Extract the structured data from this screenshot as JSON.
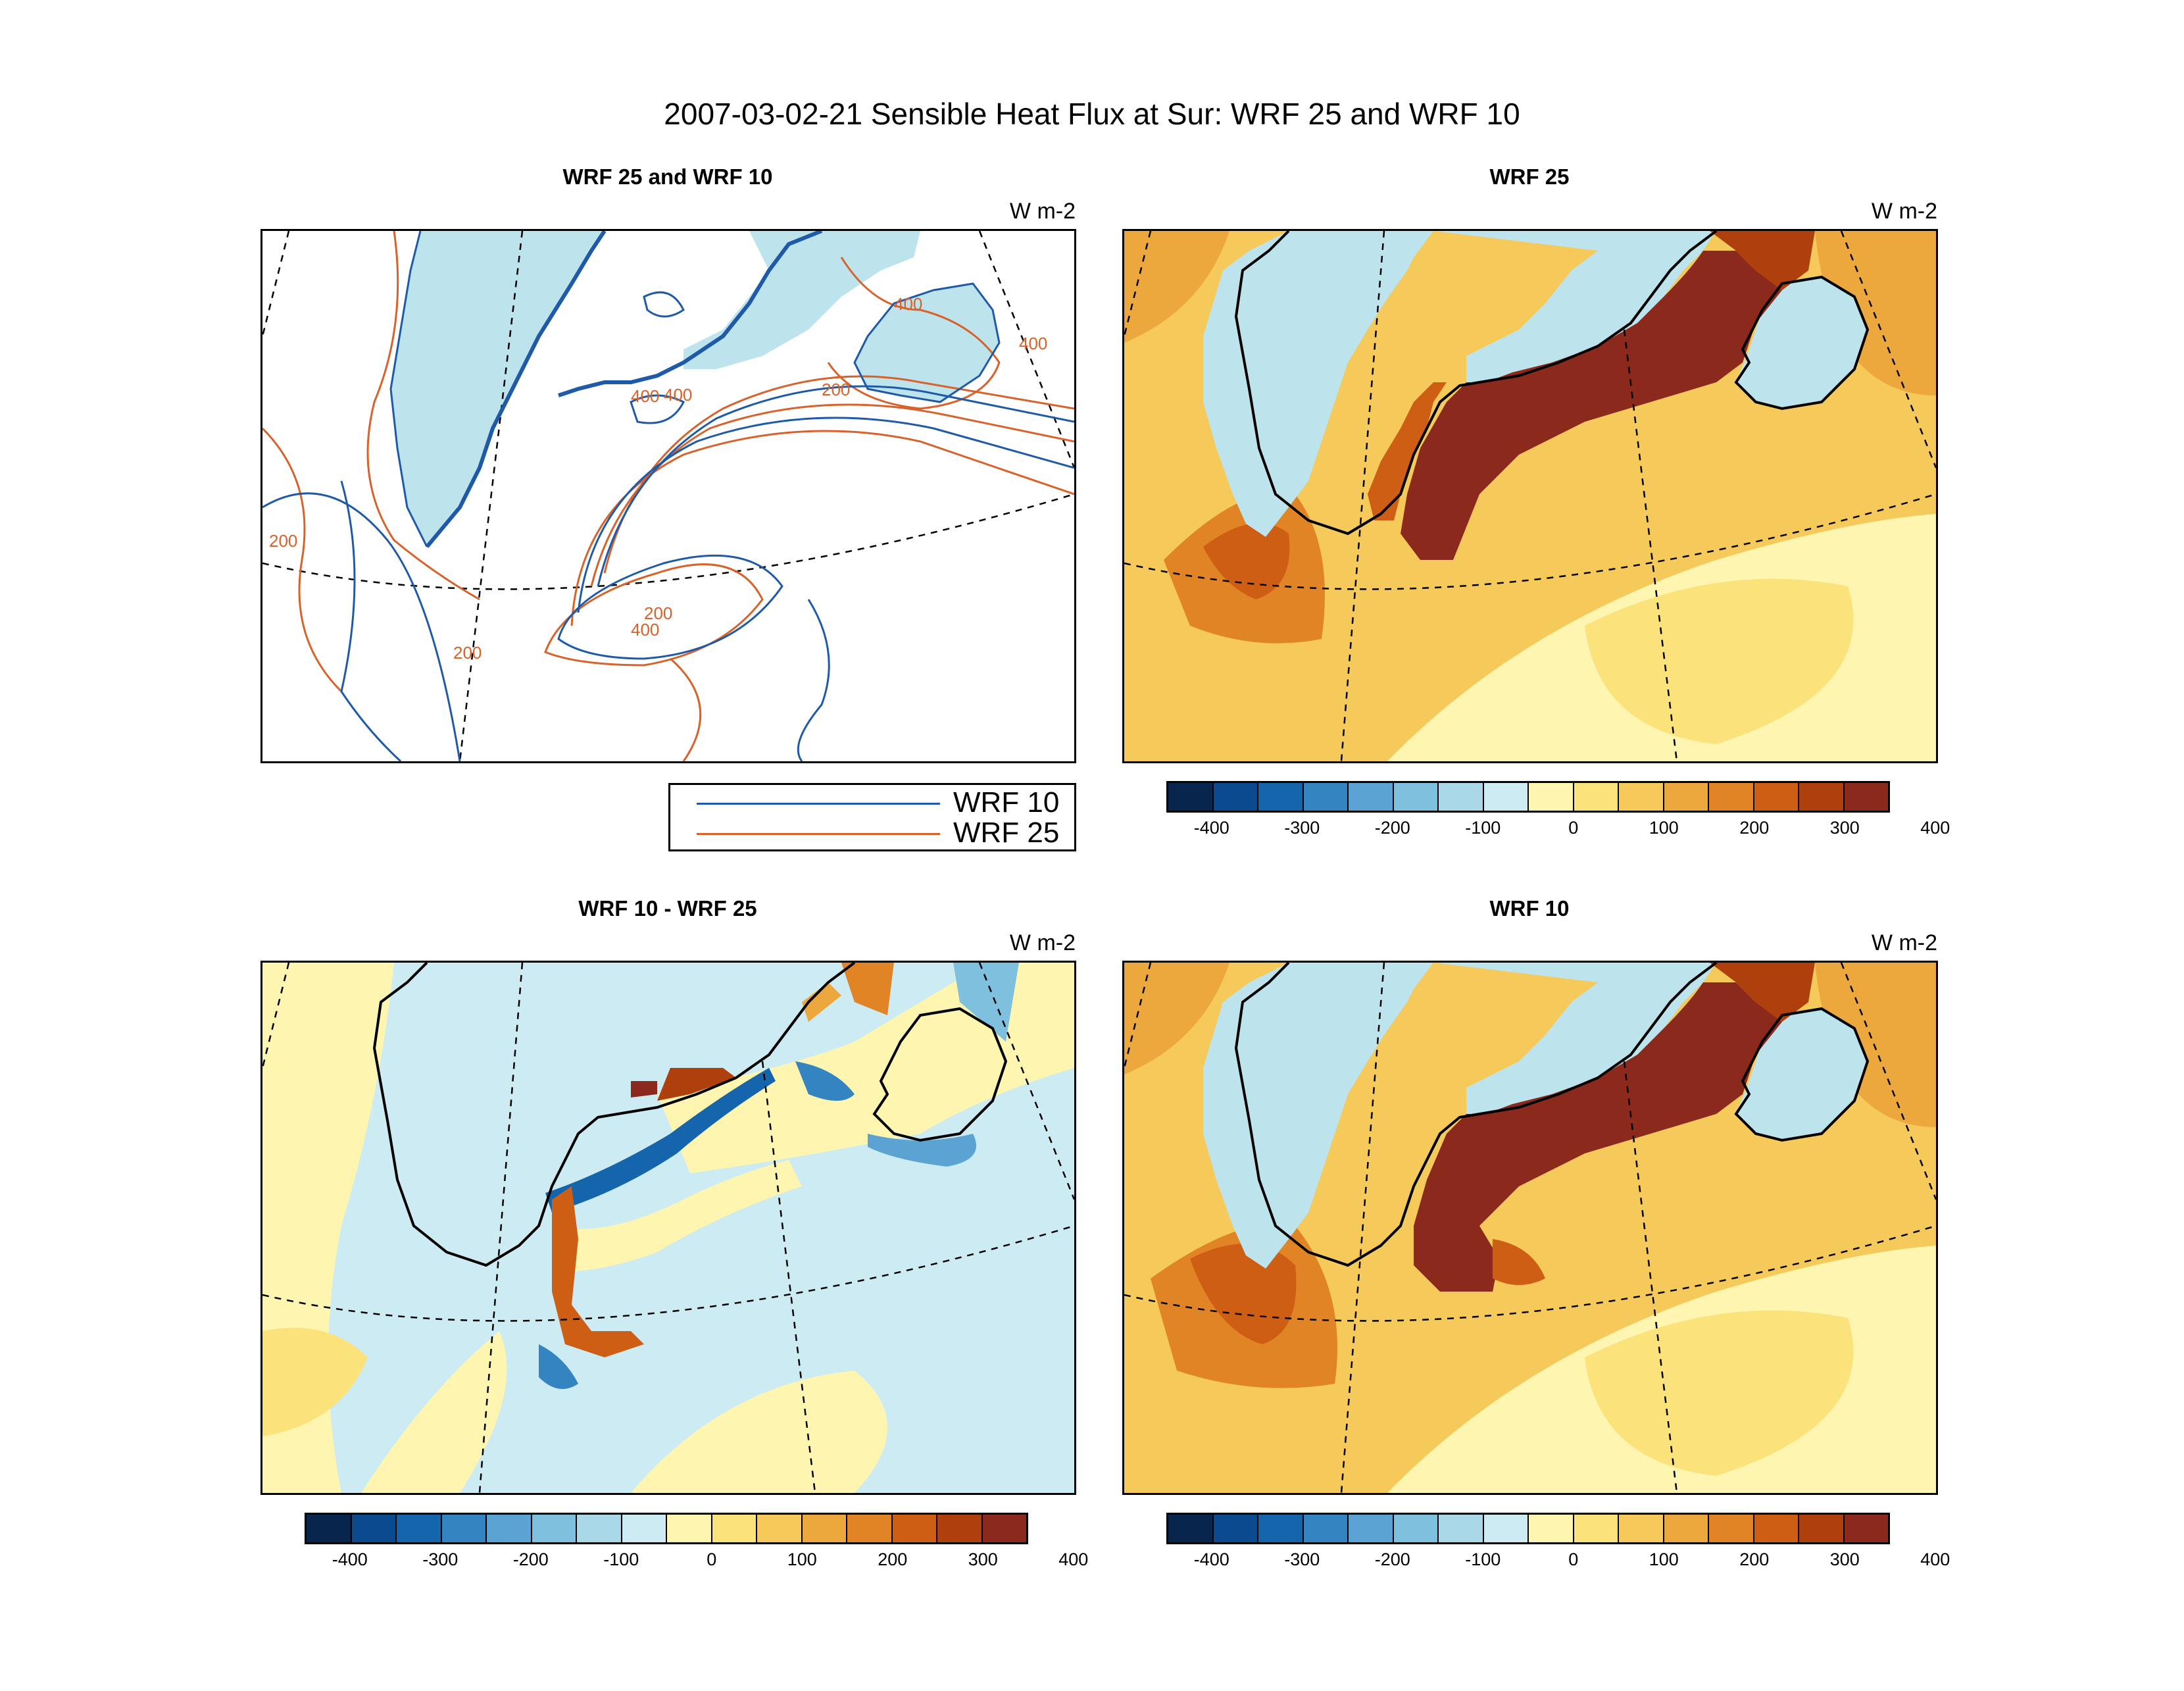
{
  "main_title": "2007-03-02-21 Sensible Heat Flux at Sur: WRF 25 and WRF 10",
  "panels": {
    "top_left": {
      "title": "WRF 25 and WRF 10",
      "units": "W m-2"
    },
    "top_right": {
      "title": "WRF 25",
      "units": "W m-2"
    },
    "bottom_left": {
      "title": "WRF 10 - WRF 25",
      "units": "W m-2"
    },
    "bottom_right": {
      "title": "WRF 10",
      "units": "W m-2"
    }
  },
  "contour_labels": [
    "200",
    "400",
    "400",
    "200",
    "400",
    "200",
    "400",
    "200",
    "400"
  ],
  "legend": {
    "items": [
      {
        "label": "WRF 10",
        "color": "#1f5aa8"
      },
      {
        "label": "WRF 25",
        "color": "#d9622b"
      }
    ]
  },
  "colorbar": {
    "colors": [
      "#08254d",
      "#0b4a8f",
      "#1565ad",
      "#3584c2",
      "#5aa3d3",
      "#7fc0df",
      "#a9d8e8",
      "#cdebf2",
      "#fdf5b0",
      "#fbe27a",
      "#f5c95a",
      "#eca83c",
      "#e08425",
      "#cf5e15",
      "#b03f0e",
      "#8b2a1c"
    ],
    "tick_labels": [
      "-400",
      "-300",
      "-200",
      "-100",
      "0",
      "100",
      "200",
      "300",
      "400"
    ]
  },
  "map_colors": {
    "land": "#bde3ec",
    "contour_wrf10": "#1f5aa8",
    "contour_wrf25": "#d9622b",
    "coastline": "#000000",
    "graticule": "#000000"
  }
}
